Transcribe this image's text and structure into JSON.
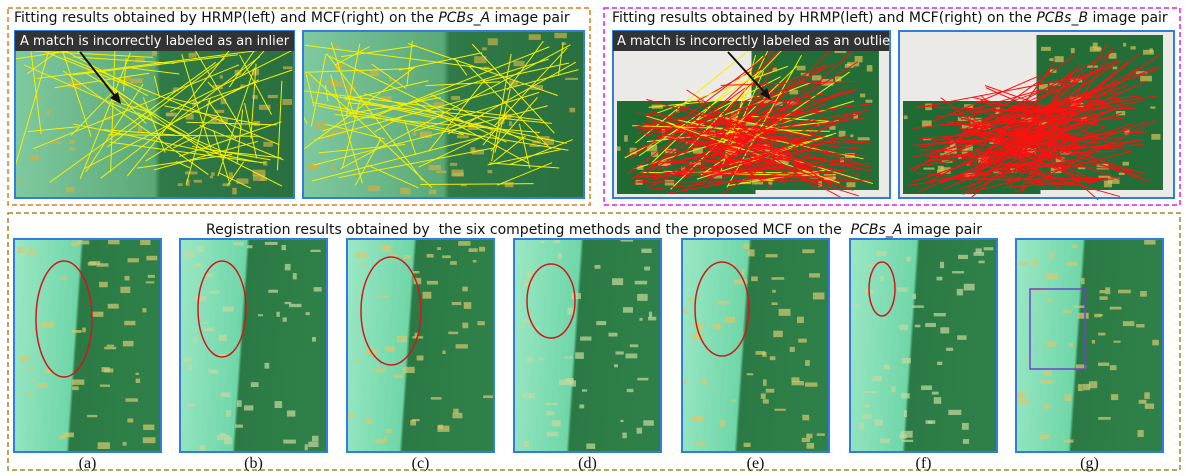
{
  "top_left": {
    "title": {
      "prefix": "Fitting results obtained by HRMP(left) and MCF(right) on the ",
      "dataset": "PCBs_A",
      "suffix": " image pair"
    },
    "annotation": "A match is incorrectly labeled as an inlier"
  },
  "top_right": {
    "title": {
      "prefix": "Fitting results obtained by HRMP(left) and MCF(right) on the ",
      "dataset": "PCBs_B",
      "suffix": " image pair"
    },
    "annotation": "A match is incorrectly labeled as an outlier"
  },
  "bottom": {
    "title": {
      "prefix": "Registration results obtained by  the six competing methods and the proposed MCF on the  ",
      "dataset": "PCBs_A",
      "suffix": " image pair"
    },
    "labels": [
      "(a)",
      "(b)",
      "(c)",
      "(d)",
      "(e)",
      "(f)",
      "(g)"
    ]
  }
}
